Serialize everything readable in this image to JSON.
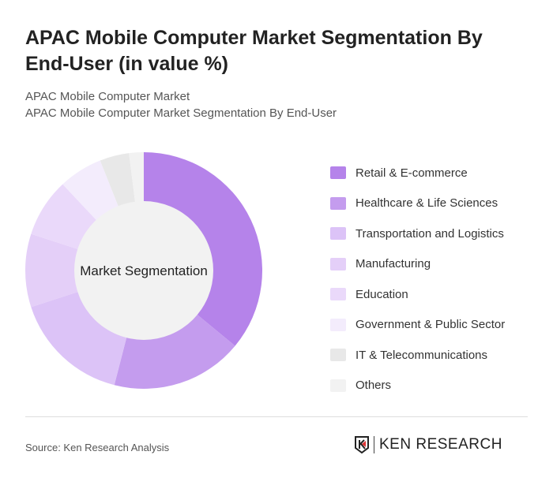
{
  "header": {
    "title": "APAC Mobile Computer Market Segmentation By End-User (in value %)",
    "subtitle1": "APAC Mobile Computer Market",
    "subtitle2": "APAC Mobile Computer Market Segmentation By End-User"
  },
  "chart_data": {
    "type": "pie",
    "center_label": "Market Segmentation",
    "categories": [
      "Retail & E-commerce",
      "Healthcare & Life Sciences",
      "Transportation and Logistics",
      "Manufacturing",
      "Education",
      "Government & Public Sector",
      "IT & Telecommunications",
      "Others"
    ],
    "values": [
      36,
      18,
      16,
      10,
      8,
      6,
      4,
      2
    ],
    "colors": [
      "#b583ea",
      "#c49cee",
      "#dcc3f7",
      "#e4cff8",
      "#ead9fa",
      "#f3ecfc",
      "#e8e8e8",
      "#f2f2f2"
    ],
    "legend_position": "right"
  },
  "footer": {
    "source": "Source: Ken Research Analysis",
    "logo_text": "KEN RESEARCH"
  }
}
